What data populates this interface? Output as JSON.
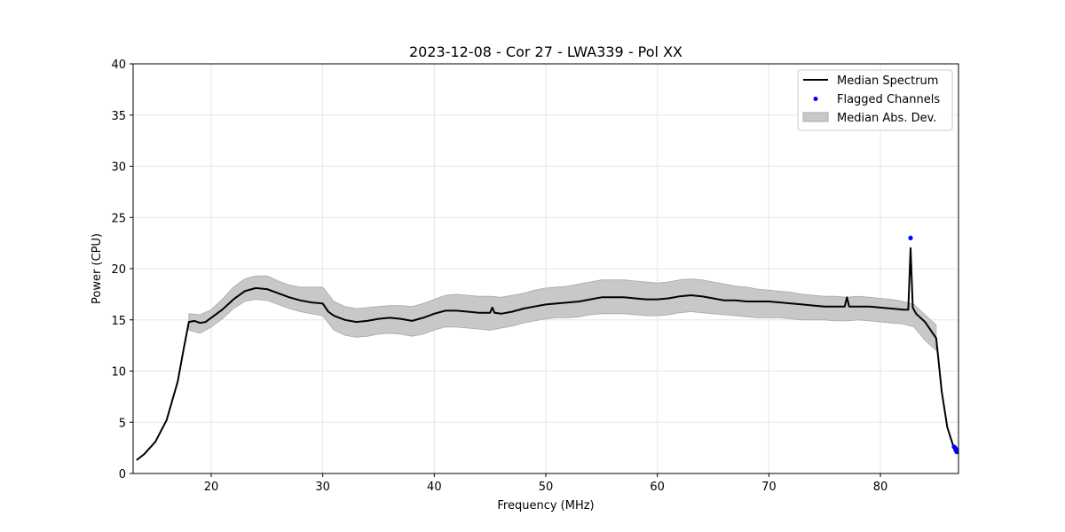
{
  "chart_data": {
    "type": "line",
    "title": "2023-12-08 - Cor 27 - LWA339 - Pol XX",
    "xlabel": "Frequency (MHz)",
    "ylabel": "Power (CPU)",
    "xlim": [
      13,
      87
    ],
    "ylim": [
      0,
      40
    ],
    "xticks": [
      20,
      30,
      40,
      50,
      60,
      70,
      80
    ],
    "yticks": [
      0,
      5,
      10,
      15,
      20,
      25,
      30,
      35,
      40
    ],
    "grid": true,
    "legend_position": "top-right",
    "colors": {
      "median": "#000000",
      "flagged": "#0000ff",
      "band": "#c8c8c8",
      "band_edge": "#a8a8a8",
      "grid": "#e6e6e6"
    },
    "series": [
      {
        "name": "Median Spectrum",
        "kind": "line",
        "x": [
          13.3,
          14,
          15,
          16,
          17,
          17.5,
          18,
          18.5,
          19,
          19.5,
          20,
          21,
          22,
          23,
          24,
          25,
          26,
          27,
          28,
          29,
          30,
          30.5,
          31,
          32,
          33,
          34,
          35,
          36,
          37,
          38,
          39,
          40,
          41,
          42,
          43,
          44,
          45,
          45.2,
          45.4,
          46,
          47,
          48,
          49,
          50,
          51,
          52,
          53,
          54,
          55,
          56,
          57,
          58,
          59,
          60,
          61,
          62,
          63,
          64,
          65,
          66,
          67,
          68,
          69,
          70,
          71,
          72,
          73,
          74,
          75,
          76,
          76.8,
          77,
          77.2,
          78,
          79,
          80,
          81,
          82,
          82.5,
          82.7,
          82.9,
          83.2,
          83.5,
          84,
          84.5,
          85,
          85.5,
          86,
          86.5,
          87
        ],
        "y": [
          1.3,
          1.9,
          3.1,
          5.2,
          9.0,
          12.0,
          14.8,
          14.9,
          14.7,
          14.8,
          15.2,
          16.0,
          17.0,
          17.8,
          18.1,
          18.0,
          17.6,
          17.2,
          16.9,
          16.7,
          16.6,
          15.8,
          15.4,
          15.0,
          14.8,
          14.9,
          15.1,
          15.2,
          15.1,
          14.9,
          15.2,
          15.6,
          15.9,
          15.9,
          15.8,
          15.7,
          15.7,
          16.2,
          15.7,
          15.6,
          15.8,
          16.1,
          16.3,
          16.5,
          16.6,
          16.7,
          16.8,
          17.0,
          17.2,
          17.2,
          17.2,
          17.1,
          17.0,
          17.0,
          17.1,
          17.3,
          17.4,
          17.3,
          17.1,
          16.9,
          16.9,
          16.8,
          16.8,
          16.8,
          16.7,
          16.6,
          16.5,
          16.4,
          16.3,
          16.3,
          16.3,
          17.2,
          16.3,
          16.3,
          16.3,
          16.2,
          16.1,
          16.0,
          16.0,
          22.0,
          16.2,
          15.6,
          15.3,
          14.8,
          14.0,
          13.2,
          8.0,
          4.5,
          2.8,
          2.3
        ]
      },
      {
        "name": "Flagged Channels",
        "kind": "scatter",
        "x": [
          82.7,
          86.6,
          86.7,
          86.75,
          86.8,
          86.85
        ],
        "y": [
          23.0,
          2.6,
          2.5,
          2.3,
          2.2,
          2.1
        ]
      },
      {
        "name": "Median Abs. Dev.",
        "kind": "band",
        "x": [
          18,
          19,
          20,
          21,
          22,
          23,
          24,
          25,
          26,
          27,
          28,
          29,
          30,
          31,
          32,
          33,
          34,
          35,
          36,
          37,
          38,
          39,
          40,
          41,
          42,
          43,
          44,
          45,
          46,
          47,
          48,
          49,
          50,
          51,
          52,
          53,
          54,
          55,
          56,
          57,
          58,
          59,
          60,
          61,
          62,
          63,
          64,
          65,
          66,
          67,
          68,
          69,
          70,
          71,
          72,
          73,
          74,
          75,
          76,
          77,
          78,
          79,
          80,
          81,
          82,
          83,
          84,
          85
        ],
        "upper": [
          15.6,
          15.5,
          16.0,
          17.0,
          18.2,
          19.0,
          19.3,
          19.3,
          18.8,
          18.4,
          18.2,
          18.2,
          18.2,
          16.8,
          16.3,
          16.1,
          16.2,
          16.3,
          16.4,
          16.4,
          16.3,
          16.6,
          17.0,
          17.4,
          17.5,
          17.4,
          17.3,
          17.3,
          17.2,
          17.4,
          17.6,
          17.9,
          18.1,
          18.2,
          18.3,
          18.5,
          18.7,
          18.9,
          18.9,
          18.9,
          18.8,
          18.7,
          18.6,
          18.7,
          18.9,
          19.0,
          18.9,
          18.7,
          18.5,
          18.3,
          18.2,
          18.0,
          17.9,
          17.8,
          17.7,
          17.5,
          17.4,
          17.3,
          17.3,
          17.2,
          17.3,
          17.2,
          17.1,
          17.0,
          16.8,
          16.5,
          15.5,
          14.5
        ],
        "lower": [
          14.0,
          13.7,
          14.3,
          15.1,
          16.1,
          16.8,
          17.0,
          16.9,
          16.5,
          16.1,
          15.8,
          15.6,
          15.4,
          14.0,
          13.5,
          13.3,
          13.4,
          13.6,
          13.7,
          13.6,
          13.4,
          13.6,
          14.0,
          14.3,
          14.3,
          14.2,
          14.1,
          14.0,
          14.2,
          14.4,
          14.7,
          14.9,
          15.1,
          15.2,
          15.2,
          15.3,
          15.5,
          15.6,
          15.6,
          15.6,
          15.5,
          15.4,
          15.4,
          15.5,
          15.7,
          15.8,
          15.7,
          15.6,
          15.5,
          15.4,
          15.3,
          15.2,
          15.2,
          15.2,
          15.1,
          15.0,
          15.0,
          15.0,
          14.9,
          14.9,
          15.0,
          14.9,
          14.8,
          14.7,
          14.6,
          14.3,
          13.0,
          12.0
        ]
      }
    ]
  }
}
